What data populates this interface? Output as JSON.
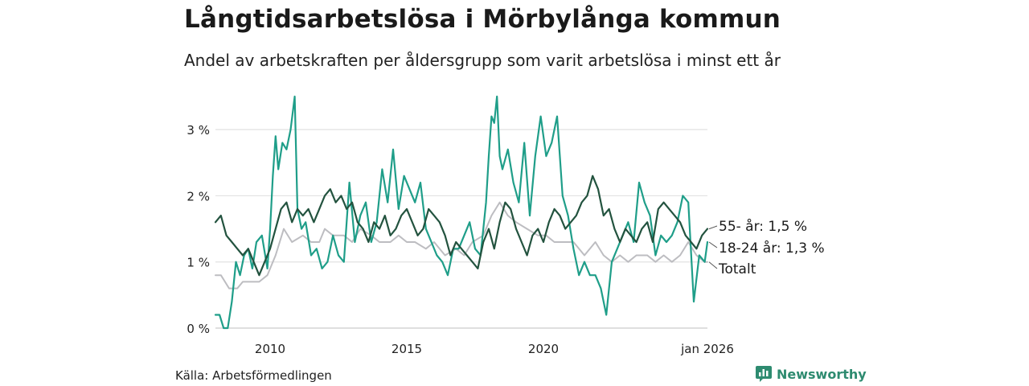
{
  "title": "Långtidsarbetslösa i Mörbylånga kommun",
  "subtitle": "Andel av arbetskraften per åldersgrupp som varit arbetslösa i minst ett år",
  "source": "Källa: Arbetsförmedlingen",
  "brand": "Newsworthy",
  "chart_data": {
    "type": "line",
    "title": "Långtidsarbetslösa i Mörbylånga kommun",
    "xlabel": "",
    "ylabel": "",
    "xlim": [
      2008.0,
      2026.0
    ],
    "ylim": [
      0,
      3.5
    ],
    "grid": true,
    "y_ticks": [
      {
        "value": 0,
        "label": "0 %"
      },
      {
        "value": 1,
        "label": "1 %"
      },
      {
        "value": 2,
        "label": "2 %"
      },
      {
        "value": 3,
        "label": "3 %"
      }
    ],
    "x_ticks": [
      {
        "value": 2010,
        "label": "2010"
      },
      {
        "value": 2015,
        "label": "2015"
      },
      {
        "value": 2020,
        "label": "2020"
      },
      {
        "value": 2026,
        "label": "jan 2026"
      }
    ],
    "series": [
      {
        "name": "Totalt",
        "label": "Totalt",
        "color": "#bdbdc1",
        "width": 2,
        "x": [
          2008.0,
          2008.2,
          2008.5,
          2008.8,
          2009.0,
          2009.3,
          2009.6,
          2009.9,
          2010.2,
          2010.5,
          2010.8,
          2011.2,
          2011.5,
          2011.8,
          2012.0,
          2012.3,
          2012.7,
          2013.0,
          2013.3,
          2013.7,
          2014.0,
          2014.4,
          2014.7,
          2015.0,
          2015.3,
          2015.7,
          2016.0,
          2016.4,
          2016.8,
          2017.1,
          2017.4,
          2017.8,
          2018.1,
          2018.4,
          2018.7,
          2019.0,
          2019.4,
          2019.8,
          2020.1,
          2020.4,
          2020.8,
          2021.1,
          2021.5,
          2021.9,
          2022.2,
          2022.5,
          2022.8,
          2023.1,
          2023.4,
          2023.8,
          2024.1,
          2024.4,
          2024.7,
          2025.0,
          2025.3,
          2025.6,
          2025.9,
          2026.0
        ],
        "values": [
          0.8,
          0.8,
          0.6,
          0.6,
          0.7,
          0.7,
          0.7,
          0.8,
          1.1,
          1.5,
          1.3,
          1.4,
          1.3,
          1.3,
          1.5,
          1.4,
          1.4,
          1.3,
          1.5,
          1.4,
          1.3,
          1.3,
          1.4,
          1.3,
          1.3,
          1.2,
          1.3,
          1.1,
          1.2,
          1.1,
          1.3,
          1.4,
          1.7,
          1.9,
          1.7,
          1.6,
          1.5,
          1.4,
          1.4,
          1.3,
          1.3,
          1.3,
          1.1,
          1.3,
          1.1,
          1.0,
          1.1,
          1.0,
          1.1,
          1.1,
          1.0,
          1.1,
          1.0,
          1.1,
          1.3,
          1.1,
          1.0,
          1.0
        ]
      },
      {
        "name": "18-24 år",
        "label": "18-24 år: 1,3 %",
        "color": "#1f9e89",
        "width": 2.2,
        "x": [
          2008.0,
          2008.15,
          2008.3,
          2008.45,
          2008.6,
          2008.75,
          2008.9,
          2009.05,
          2009.2,
          2009.35,
          2009.5,
          2009.7,
          2009.9,
          2010.0,
          2010.1,
          2010.2,
          2010.3,
          2010.45,
          2010.6,
          2010.75,
          2010.9,
          2011.0,
          2011.15,
          2011.3,
          2011.5,
          2011.7,
          2011.9,
          2012.1,
          2012.3,
          2012.5,
          2012.7,
          2012.9,
          2013.1,
          2013.3,
          2013.5,
          2013.7,
          2013.9,
          2014.1,
          2014.3,
          2014.5,
          2014.7,
          2014.9,
          2015.1,
          2015.3,
          2015.5,
          2015.7,
          2015.9,
          2016.1,
          2016.3,
          2016.5,
          2016.7,
          2016.9,
          2017.1,
          2017.3,
          2017.5,
          2017.7,
          2017.9,
          2018.0,
          2018.1,
          2018.2,
          2018.3,
          2018.4,
          2018.5,
          2018.7,
          2018.9,
          2019.1,
          2019.3,
          2019.5,
          2019.7,
          2019.9,
          2020.1,
          2020.3,
          2020.5,
          2020.7,
          2020.9,
          2021.1,
          2021.3,
          2021.5,
          2021.7,
          2021.9,
          2022.1,
          2022.3,
          2022.5,
          2022.7,
          2022.9,
          2023.1,
          2023.3,
          2023.5,
          2023.7,
          2023.9,
          2024.1,
          2024.3,
          2024.5,
          2024.7,
          2024.9,
          2025.1,
          2025.3,
          2025.5,
          2025.7,
          2025.9,
          2026.0
        ],
        "values": [
          0.2,
          0.2,
          0.0,
          0.0,
          0.4,
          1.0,
          0.8,
          1.1,
          1.2,
          0.9,
          1.3,
          1.4,
          0.9,
          1.5,
          2.3,
          2.9,
          2.4,
          2.8,
          2.7,
          3.0,
          3.5,
          1.8,
          1.5,
          1.6,
          1.1,
          1.2,
          0.9,
          1.0,
          1.4,
          1.1,
          1.0,
          2.2,
          1.3,
          1.7,
          1.9,
          1.3,
          1.6,
          2.4,
          1.9,
          2.7,
          1.8,
          2.3,
          2.1,
          1.9,
          2.2,
          1.5,
          1.3,
          1.1,
          1.0,
          0.8,
          1.2,
          1.2,
          1.4,
          1.6,
          1.2,
          1.1,
          1.9,
          2.6,
          3.2,
          3.1,
          3.5,
          2.6,
          2.4,
          2.7,
          2.2,
          1.9,
          2.8,
          1.7,
          2.6,
          3.2,
          2.6,
          2.8,
          3.2,
          2.0,
          1.7,
          1.2,
          0.8,
          1.0,
          0.8,
          0.8,
          0.6,
          0.2,
          1.0,
          1.2,
          1.4,
          1.6,
          1.3,
          2.2,
          1.9,
          1.7,
          1.1,
          1.4,
          1.3,
          1.4,
          1.6,
          2.0,
          1.9,
          0.4,
          1.1,
          1.0,
          1.3
        ]
      },
      {
        "name": "55- år",
        "label": "55- år: 1,5 %",
        "color": "#23533f",
        "width": 2.2,
        "x": [
          2008.0,
          2008.2,
          2008.4,
          2008.6,
          2008.8,
          2009.0,
          2009.2,
          2009.4,
          2009.6,
          2009.8,
          2010.0,
          2010.2,
          2010.4,
          2010.6,
          2010.8,
          2011.0,
          2011.2,
          2011.4,
          2011.6,
          2011.8,
          2012.0,
          2012.2,
          2012.4,
          2012.6,
          2012.8,
          2013.0,
          2013.2,
          2013.4,
          2013.6,
          2013.8,
          2014.0,
          2014.2,
          2014.4,
          2014.6,
          2014.8,
          2015.0,
          2015.2,
          2015.4,
          2015.6,
          2015.8,
          2016.0,
          2016.2,
          2016.4,
          2016.6,
          2016.8,
          2017.0,
          2017.2,
          2017.4,
          2017.6,
          2017.8,
          2018.0,
          2018.2,
          2018.4,
          2018.6,
          2018.8,
          2019.0,
          2019.2,
          2019.4,
          2019.6,
          2019.8,
          2020.0,
          2020.2,
          2020.4,
          2020.6,
          2020.8,
          2021.0,
          2021.2,
          2021.4,
          2021.6,
          2021.8,
          2022.0,
          2022.2,
          2022.4,
          2022.6,
          2022.8,
          2023.0,
          2023.2,
          2023.4,
          2023.6,
          2023.8,
          2024.0,
          2024.2,
          2024.4,
          2024.6,
          2024.8,
          2025.0,
          2025.2,
          2025.4,
          2025.6,
          2025.8,
          2026.0
        ],
        "values": [
          1.6,
          1.7,
          1.4,
          1.3,
          1.2,
          1.1,
          1.2,
          1.0,
          0.8,
          1.0,
          1.2,
          1.5,
          1.8,
          1.9,
          1.6,
          1.8,
          1.7,
          1.8,
          1.6,
          1.8,
          2.0,
          2.1,
          1.9,
          2.0,
          1.8,
          1.9,
          1.6,
          1.5,
          1.3,
          1.6,
          1.5,
          1.7,
          1.4,
          1.5,
          1.7,
          1.8,
          1.6,
          1.4,
          1.5,
          1.8,
          1.7,
          1.6,
          1.4,
          1.1,
          1.3,
          1.2,
          1.1,
          1.0,
          0.9,
          1.3,
          1.5,
          1.2,
          1.6,
          1.9,
          1.8,
          1.5,
          1.3,
          1.1,
          1.4,
          1.5,
          1.3,
          1.6,
          1.8,
          1.7,
          1.5,
          1.6,
          1.7,
          1.9,
          2.0,
          2.3,
          2.1,
          1.7,
          1.8,
          1.5,
          1.3,
          1.5,
          1.4,
          1.3,
          1.5,
          1.6,
          1.3,
          1.8,
          1.9,
          1.8,
          1.7,
          1.6,
          1.4,
          1.3,
          1.2,
          1.4,
          1.5
        ]
      }
    ]
  }
}
